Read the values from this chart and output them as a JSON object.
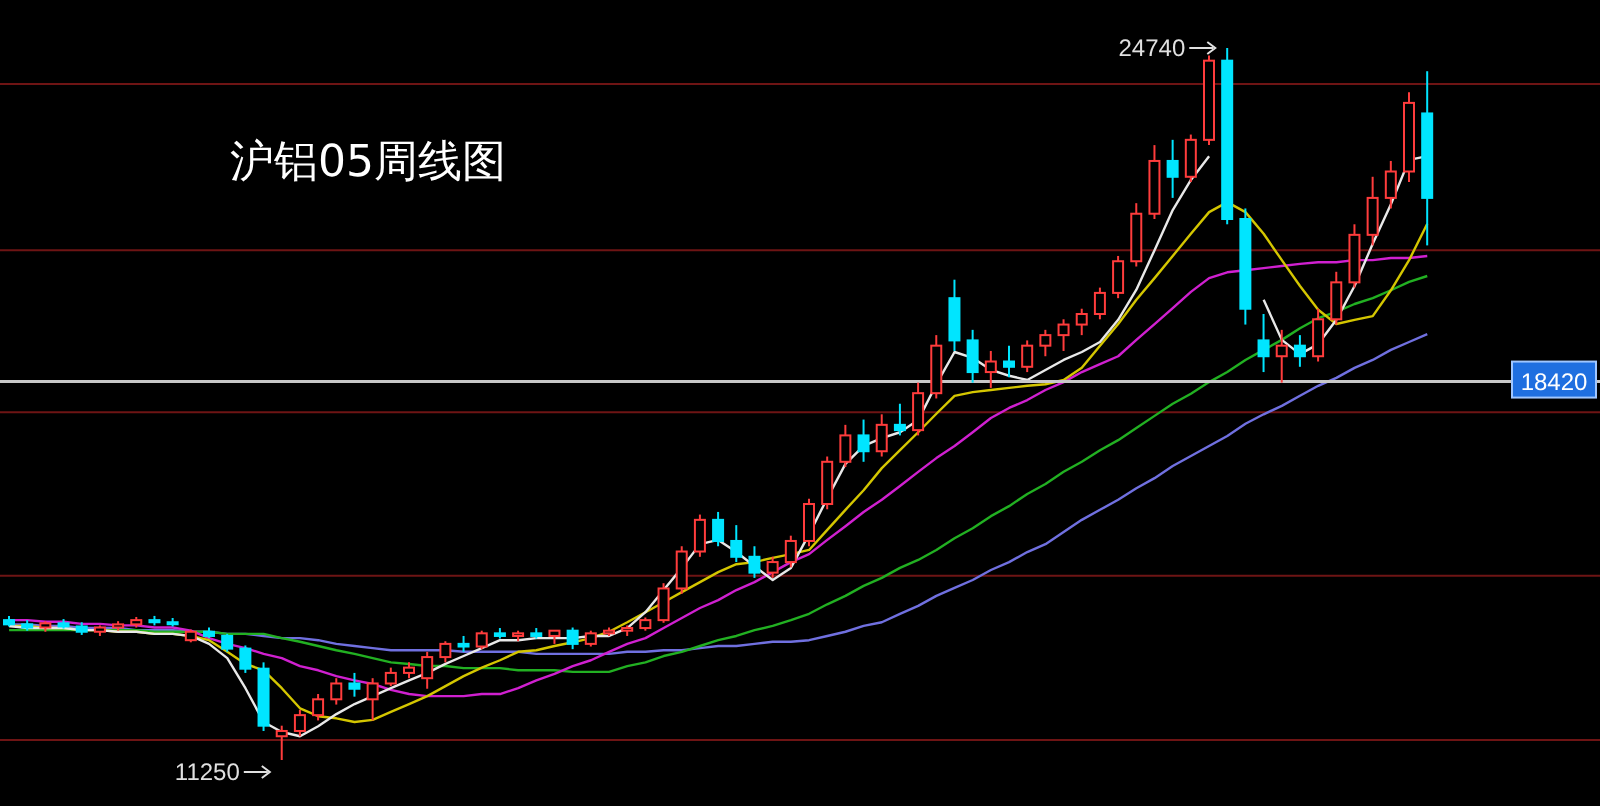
{
  "chart_data": {
    "type": "candlestick",
    "title": "沪铝05周线图",
    "categories": [
      null,
      null,
      null,
      null,
      null,
      null,
      null,
      null,
      null,
      null,
      null,
      null,
      null,
      null,
      null,
      null,
      null,
      null,
      null,
      null,
      null,
      null,
      null,
      null,
      null,
      null,
      null,
      null,
      null,
      null,
      null,
      null,
      null,
      null,
      null,
      null,
      null,
      null,
      null,
      null,
      null,
      null,
      null,
      null,
      null,
      null,
      null,
      null,
      null,
      null,
      null,
      null,
      null,
      null,
      null,
      null,
      null,
      null,
      null,
      null,
      null,
      null,
      null,
      null,
      null,
      null,
      null,
      null,
      null,
      null,
      null,
      null,
      null,
      null,
      null,
      null,
      null,
      null,
      null
    ],
    "ohlc": [
      [
        13900,
        13980,
        13780,
        13820
      ],
      [
        13820,
        13900,
        13700,
        13760
      ],
      [
        13760,
        13880,
        13680,
        13840
      ],
      [
        13840,
        13920,
        13740,
        13780
      ],
      [
        13780,
        13860,
        13620,
        13680
      ],
      [
        13680,
        13800,
        13600,
        13760
      ],
      [
        13760,
        13880,
        13700,
        13820
      ],
      [
        13820,
        13960,
        13760,
        13900
      ],
      [
        13900,
        13980,
        13800,
        13860
      ],
      [
        13860,
        13940,
        13780,
        13840
      ],
      [
        13520,
        13720,
        13480,
        13680
      ],
      [
        13680,
        13760,
        13560,
        13600
      ],
      [
        13600,
        13640,
        13300,
        13360
      ],
      [
        13360,
        13420,
        12900,
        12980
      ],
      [
        12980,
        13100,
        11800,
        11900
      ],
      [
        11700,
        11900,
        11250,
        11800
      ],
      [
        11800,
        12200,
        11700,
        12100
      ],
      [
        12100,
        12500,
        12000,
        12400
      ],
      [
        12400,
        12800,
        12300,
        12700
      ],
      [
        12700,
        12900,
        12450,
        12600
      ],
      [
        12400,
        12800,
        12000,
        12700
      ],
      [
        12700,
        13000,
        12650,
        12900
      ],
      [
        12900,
        13100,
        12800,
        13000
      ],
      [
        12800,
        13300,
        12600,
        13200
      ],
      [
        13200,
        13500,
        13100,
        13450
      ],
      [
        13450,
        13600,
        13300,
        13400
      ],
      [
        13400,
        13700,
        13350,
        13650
      ],
      [
        13650,
        13750,
        13550,
        13600
      ],
      [
        13600,
        13700,
        13500,
        13650
      ],
      [
        13650,
        13750,
        13550,
        13600
      ],
      [
        13600,
        13700,
        13450,
        13700
      ],
      [
        13700,
        13760,
        13350,
        13450
      ],
      [
        13450,
        13700,
        13400,
        13650
      ],
      [
        13650,
        13760,
        13600,
        13700
      ],
      [
        13700,
        13800,
        13600,
        13750
      ],
      [
        13750,
        13950,
        13700,
        13900
      ],
      [
        13900,
        14600,
        13850,
        14500
      ],
      [
        14500,
        15300,
        14400,
        15200
      ],
      [
        15200,
        15900,
        15100,
        15800
      ],
      [
        15800,
        15950,
        15300,
        15400
      ],
      [
        15400,
        15700,
        15000,
        15100
      ],
      [
        15100,
        15300,
        14700,
        14800
      ],
      [
        14800,
        15100,
        14700,
        15000
      ],
      [
        15000,
        15500,
        14900,
        15400
      ],
      [
        15400,
        16200,
        15300,
        16100
      ],
      [
        16100,
        17000,
        16000,
        16900
      ],
      [
        16900,
        17600,
        16800,
        17400
      ],
      [
        17400,
        17700,
        16900,
        17100
      ],
      [
        17100,
        17800,
        17000,
        17600
      ],
      [
        17600,
        18000,
        17400,
        17500
      ],
      [
        17500,
        18400,
        17400,
        18200
      ],
      [
        18200,
        19300,
        18100,
        19100
      ],
      [
        20000,
        20350,
        19000,
        19200
      ],
      [
        19200,
        19400,
        18400,
        18600
      ],
      [
        18600,
        19000,
        18300,
        18800
      ],
      [
        18800,
        19100,
        18500,
        18700
      ],
      [
        18700,
        19200,
        18600,
        19100
      ],
      [
        19100,
        19400,
        18900,
        19300
      ],
      [
        19300,
        19600,
        19000,
        19500
      ],
      [
        19500,
        19800,
        19300,
        19700
      ],
      [
        19700,
        20200,
        19600,
        20100
      ],
      [
        20100,
        20800,
        20000,
        20700
      ],
      [
        20700,
        21800,
        20600,
        21600
      ],
      [
        21600,
        22900,
        21500,
        22600
      ],
      [
        22600,
        23000,
        21900,
        22300
      ],
      [
        22300,
        23100,
        22200,
        23000
      ],
      [
        23000,
        24600,
        22900,
        24500
      ],
      [
        24500,
        24740,
        21400,
        21500
      ],
      [
        21500,
        21700,
        19500,
        19800
      ],
      [
        19200,
        19700,
        18600,
        18900
      ],
      [
        18900,
        19400,
        18400,
        19100
      ],
      [
        19100,
        19300,
        18700,
        18900
      ],
      [
        18900,
        19800,
        18800,
        19600
      ],
      [
        19600,
        20500,
        19500,
        20300
      ],
      [
        20300,
        21400,
        20200,
        21200
      ],
      [
        21200,
        22300,
        21000,
        21900
      ],
      [
        21900,
        22600,
        21700,
        22400
      ],
      [
        22400,
        23900,
        22200,
        23700
      ],
      [
        23500,
        24300,
        21000,
        21900
      ]
    ],
    "colors": [
      "#00e5ff",
      "#00e5ff",
      "#ff3c3c",
      "#00e5ff",
      "#00e5ff",
      "#ff3c3c",
      "#ff3c3c",
      "#ff3c3c",
      "#00e5ff",
      "#00e5ff",
      "#ff3c3c",
      "#00e5ff",
      "#00e5ff",
      "#00e5ff",
      "#00e5ff",
      "#ff3c3c",
      "#ff3c3c",
      "#ff3c3c",
      "#ff3c3c",
      "#00e5ff",
      "#ff3c3c",
      "#ff3c3c",
      "#ff3c3c",
      "#ff3c3c",
      "#ff3c3c",
      "#00e5ff",
      "#ff3c3c",
      "#00e5ff",
      "#ff3c3c",
      "#00e5ff",
      "#ff3c3c",
      "#00e5ff",
      "#ff3c3c",
      "#ff3c3c",
      "#ff3c3c",
      "#ff3c3c",
      "#ff3c3c",
      "#ff3c3c",
      "#ff3c3c",
      "#00e5ff",
      "#00e5ff",
      "#00e5ff",
      "#ff3c3c",
      "#ff3c3c",
      "#ff3c3c",
      "#ff3c3c",
      "#ff3c3c",
      "#00e5ff",
      "#ff3c3c",
      "#00e5ff",
      "#ff3c3c",
      "#ff3c3c",
      "#00e5ff",
      "#00e5ff",
      "#ff3c3c",
      "#00e5ff",
      "#ff3c3c",
      "#ff3c3c",
      "#ff3c3c",
      "#ff3c3c",
      "#ff3c3c",
      "#ff3c3c",
      "#ff3c3c",
      "#ff3c3c",
      "#00e5ff",
      "#ff3c3c",
      "#ff3c3c",
      "#00e5ff",
      "#00e5ff",
      "#00e5ff",
      "#ff3c3c",
      "#00e5ff",
      "#ff3c3c",
      "#ff3c3c",
      "#ff3c3c",
      "#ff3c3c",
      "#ff3c3c",
      "#ff3c3c",
      "#00e5ff"
    ],
    "series": [
      {
        "type": "line",
        "color": "#7070e0",
        "values": [
          13820,
          13820,
          13790,
          13790,
          13750,
          13750,
          13750,
          13710,
          13710,
          13710,
          13680,
          13680,
          13640,
          13640,
          13600,
          13560,
          13560,
          13520,
          13450,
          13410,
          13370,
          13330,
          13330,
          13330,
          13330,
          13300,
          13300,
          13300,
          13300,
          13260,
          13260,
          13260,
          13260,
          13260,
          13300,
          13300,
          13330,
          13330,
          13370,
          13410,
          13410,
          13450,
          13490,
          13490,
          13520,
          13600,
          13680,
          13790,
          13860,
          14020,
          14170,
          14360,
          14510,
          14660,
          14850,
          15000,
          15190,
          15340,
          15570,
          15800,
          15990,
          16180,
          16400,
          16590,
          16820,
          17010,
          17200,
          17390,
          17620,
          17800,
          17960,
          18150,
          18340,
          18490,
          18680,
          18830,
          19020,
          19170,
          19320
        ]
      },
      {
        "type": "line",
        "color": "#22b022",
        "values": [
          13710,
          13710,
          13710,
          13710,
          13710,
          13710,
          13710,
          13710,
          13680,
          13680,
          13680,
          13680,
          13640,
          13640,
          13640,
          13560,
          13490,
          13410,
          13330,
          13260,
          13180,
          13100,
          13070,
          13030,
          13030,
          12990,
          12990,
          12990,
          12950,
          12950,
          12950,
          12920,
          12920,
          12920,
          13030,
          13100,
          13220,
          13300,
          13410,
          13520,
          13600,
          13710,
          13790,
          13900,
          14020,
          14200,
          14360,
          14550,
          14700,
          14890,
          15040,
          15230,
          15450,
          15640,
          15870,
          16060,
          16290,
          16480,
          16710,
          16900,
          17120,
          17310,
          17540,
          17770,
          18000,
          18190,
          18410,
          18600,
          18830,
          19020,
          19210,
          19430,
          19620,
          19740,
          19890,
          20000,
          20150,
          20310,
          20420
        ]
      },
      {
        "type": "line",
        "color": "#d020d0",
        "values": [
          13900,
          13900,
          13870,
          13870,
          13830,
          13830,
          13800,
          13800,
          13760,
          13760,
          13700,
          13560,
          13450,
          13370,
          13260,
          13180,
          13030,
          12950,
          12840,
          12760,
          12690,
          12580,
          12500,
          12460,
          12460,
          12460,
          12500,
          12500,
          12610,
          12760,
          12880,
          13030,
          13140,
          13300,
          13450,
          13560,
          13750,
          13940,
          14130,
          14280,
          14470,
          14620,
          14810,
          15000,
          15150,
          15420,
          15680,
          15950,
          16180,
          16440,
          16710,
          16970,
          17200,
          17460,
          17730,
          17920,
          18070,
          18260,
          18410,
          18600,
          18750,
          18900,
          19210,
          19510,
          19810,
          20120,
          20380,
          20490,
          20530,
          20570,
          20610,
          20650,
          20680,
          20680,
          20720,
          20720,
          20760,
          20760,
          20800
        ]
      },
      {
        "type": "line",
        "color": "#d4c600",
        "values": [
          13790,
          13790,
          13750,
          13750,
          13710,
          13710,
          13680,
          13680,
          13640,
          13640,
          13600,
          13520,
          13300,
          13070,
          12950,
          12610,
          12230,
          12080,
          12040,
          11970,
          12010,
          12160,
          12310,
          12460,
          12650,
          12840,
          13000,
          13140,
          13300,
          13330,
          13410,
          13480,
          13560,
          13680,
          13860,
          14050,
          14240,
          14430,
          14620,
          14810,
          14960,
          15000,
          15080,
          15150,
          15230,
          15610,
          15990,
          16360,
          16780,
          17120,
          17460,
          17810,
          18150,
          18220,
          18260,
          18300,
          18340,
          18370,
          18450,
          18680,
          19100,
          19510,
          19970,
          20380,
          20800,
          21220,
          21630,
          21820,
          21630,
          21220,
          20720,
          20230,
          19780,
          19510,
          19590,
          19660,
          20150,
          20720,
          21410
        ]
      },
      {
        "type": "line",
        "color": "#e8e8e8",
        "values": [
          13790,
          13750,
          13750,
          13750,
          13710,
          13710,
          13680,
          13680,
          13640,
          13640,
          13600,
          13450,
          13180,
          12610,
          11970,
          11780,
          11700,
          11890,
          12120,
          12310,
          12460,
          12610,
          12760,
          12900,
          13070,
          13220,
          13370,
          13520,
          13520,
          13560,
          13560,
          13560,
          13600,
          13600,
          13750,
          14050,
          14470,
          14890,
          15340,
          15420,
          15190,
          14920,
          14660,
          14890,
          15530,
          16210,
          16860,
          17200,
          17350,
          17460,
          17690,
          18370,
          18980,
          18870,
          18640,
          18530,
          18450,
          18640,
          18830,
          18980,
          19170,
          19590,
          20160,
          20910,
          21670,
          22240,
          22690,
          null,
          null,
          19970,
          19210,
          18940,
          19130,
          19590,
          20230,
          21030,
          21780,
          22620,
          22690
        ]
      }
    ],
    "annotations": [
      "24740",
      "11250"
    ],
    "ref_lines": [
      {
        "axis": "y",
        "value": 18420,
        "label": "18420",
        "color": "#c8c8c8"
      }
    ],
    "grid": "y",
    "yticks": [
      {
        "value": 24060,
        "label": null
      },
      {
        "value": 20910,
        "label": null
      },
      {
        "value": 17840,
        "label": null
      },
      {
        "value": 14740,
        "label": null
      },
      {
        "value": 11630,
        "label": null
      }
    ],
    "tick_labels": false
  }
}
